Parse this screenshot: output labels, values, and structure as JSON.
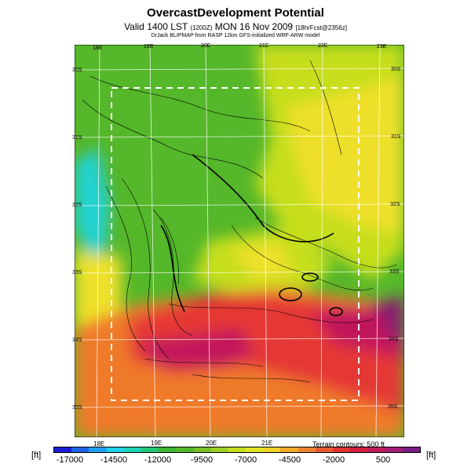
{
  "header": {
    "title": "OvercastDevelopment Potential",
    "subtitle_main": "Valid 1400 LST",
    "subtitle_time": "(1200Z)",
    "subtitle_date": "MON 16 Nov 2009",
    "subtitle_run": "[18hrFcst@2356z]",
    "credit": "DrJack BLIPMAP from RASP 12km GFS-initialized WRF-ARW model"
  },
  "map": {
    "lon_top": [
      "18E",
      "19E",
      "20E",
      "21E",
      "22E",
      "23E"
    ],
    "lon_bottom": [
      "18E",
      "19E",
      "20E",
      "21E"
    ],
    "lat_left": [
      "30S",
      "31S",
      "32S",
      "33S",
      "34S",
      "35S"
    ],
    "lat_right": [
      "30S",
      "31S",
      "32S",
      "33S",
      "34S",
      "35S"
    ],
    "terrain_note": "Terrain contours: 500 ft",
    "colors": {
      "violet": "#8a1c6e",
      "magenta": "#c2185b",
      "red": "#e53935",
      "orange": "#ef7a2a",
      "yellow": "#eee02a",
      "yellow_green": "#c6de1e",
      "green": "#55b72a",
      "cyan": "#20d2d2"
    }
  },
  "colorbar": {
    "unit_left": "[ft]",
    "unit_right": "[ft]",
    "ticks": [
      "-17000",
      "-14500",
      "-12000",
      "-9500",
      "-7000",
      "-4500",
      "-2000",
      "500"
    ],
    "colors": [
      "#1c1cd6",
      "#1e64e6",
      "#1ea0f0",
      "#1ed2e6",
      "#20d2b4",
      "#22c878",
      "#3cb432",
      "#55b72a",
      "#78c228",
      "#9ed024",
      "#c6de1e",
      "#e0e624",
      "#f0d22a",
      "#f0aa2a",
      "#ec8232",
      "#e65a32",
      "#e03232",
      "#d21e3c",
      "#be1e5a",
      "#a01e78",
      "#7a1e82"
    ]
  }
}
